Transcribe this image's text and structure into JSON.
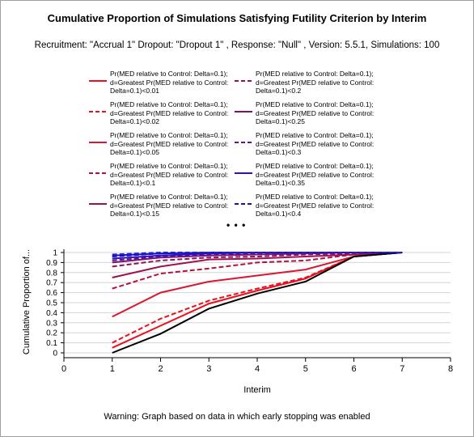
{
  "chart_data": {
    "type": "line",
    "title": "Cumulative Proportion of Simulations Satisfying Futility Criterion by Interim",
    "subtitle": "Recruitment: \"Accrual 1\" Dropout: \"Dropout 1\" , Response: \"Null\" , Version: 5.5.1, Simulations: 100",
    "xlabel": "Interim",
    "ylabel": "Cumulative Proportion of...",
    "xlim": [
      0,
      8
    ],
    "ylim": [
      0,
      1
    ],
    "x_ticks": [
      "0",
      "1",
      "2",
      "3",
      "4",
      "5",
      "6",
      "7",
      "8"
    ],
    "y_ticks": [
      "0",
      "0.1",
      "0.2",
      "0.3",
      "0.4",
      "0.5",
      "0.6",
      "0.7",
      "0.8",
      "0.9",
      "1"
    ],
    "grid": "horizontal",
    "legend_placement": "top",
    "legend_more": "• • •",
    "x": [
      1,
      2,
      3,
      4,
      5,
      6,
      7
    ],
    "series": [
      {
        "name": "Pr(MED relative to Control: Delta=0.1); d=Greatest Pr(MED relative to Control: Delta=0.1)<0.01",
        "color": "#e8101e",
        "dash": "solid",
        "values": [
          0.05,
          0.27,
          0.49,
          0.62,
          0.74,
          0.96,
          1.0
        ]
      },
      {
        "name": "Pr(MED relative to Control: Delta=0.1); d=Greatest Pr(MED relative to Control: Delta=0.1)<0.02",
        "color": "#e8101e",
        "dash": "dashed",
        "values": [
          0.1,
          0.34,
          0.52,
          0.64,
          0.75,
          0.96,
          1.0
        ]
      },
      {
        "name": "Pr(MED relative to Control: Delta=0.1); d=Greatest Pr(MED relative to Control: Delta=0.1)<0.05",
        "color": "#d81830",
        "dash": "solid",
        "values": [
          0.36,
          0.6,
          0.71,
          0.77,
          0.83,
          0.96,
          1.0
        ]
      },
      {
        "name": "Pr(MED relative to Control: Delta=0.1); d=Greatest Pr(MED relative to Control: Delta=0.1)<0.1",
        "color": "#b8103c",
        "dash": "dashed",
        "values": [
          0.64,
          0.79,
          0.84,
          0.9,
          0.92,
          0.98,
          1.0
        ]
      },
      {
        "name": "Pr(MED relative to Control: Delta=0.1); d=Greatest Pr(MED relative to Control: Delta=0.1)<0.15",
        "color": "#a01050",
        "dash": "solid",
        "values": [
          0.75,
          0.86,
          0.93,
          0.94,
          0.96,
          0.98,
          1.0
        ]
      },
      {
        "name": "Pr(MED relative to Control: Delta=0.1); d=Greatest Pr(MED relative to Control: Delta=0.1)<0.2",
        "color": "#8c1260",
        "dash": "dashed",
        "values": [
          0.86,
          0.92,
          0.95,
          0.96,
          0.98,
          0.99,
          1.0
        ]
      },
      {
        "name": "Pr(MED relative to Control: Delta=0.1); d=Greatest Pr(MED relative to Control: Delta=0.1)<0.25",
        "color": "#781470",
        "dash": "solid",
        "values": [
          0.9,
          0.95,
          0.97,
          0.98,
          0.99,
          1.0,
          1.0
        ]
      },
      {
        "name": "Pr(MED relative to Control: Delta=0.1); d=Greatest Pr(MED relative to Control: Delta=0.1)<0.3",
        "color": "#601480",
        "dash": "dashed",
        "values": [
          0.92,
          0.96,
          0.98,
          0.99,
          0.99,
          1.0,
          1.0
        ]
      },
      {
        "name": "Pr(MED relative to Control: Delta=0.1); d=Greatest Pr(MED relative to Control: Delta=0.1)<0.35",
        "color": "#2a10c8",
        "dash": "solid",
        "values": [
          0.94,
          0.97,
          0.99,
          1.0,
          1.0,
          1.0,
          1.0
        ]
      },
      {
        "name": "Pr(MED relative to Control: Delta=0.1); d=Greatest Pr(MED relative to Control: Delta=0.1)<0.4",
        "color": "#1a10a8",
        "dash": "dashed",
        "values": [
          0.96,
          0.99,
          1.0,
          1.0,
          1.0,
          1.0,
          1.0
        ]
      },
      {
        "color": "#000000",
        "dash": "solid",
        "values": [
          0.0,
          0.19,
          0.44,
          0.59,
          0.71,
          0.96,
          1.0
        ]
      },
      {
        "color": "#1a10c0",
        "dash": "solid",
        "values": [
          0.97,
          0.99,
          1.0,
          1.0,
          1.0,
          1.0,
          1.0
        ]
      },
      {
        "color": "#2020d8",
        "dash": "dashed",
        "values": [
          0.98,
          1.0,
          1.0,
          1.0,
          1.0,
          1.0,
          1.0
        ]
      }
    ],
    "legend_order": [
      0,
      5,
      1,
      6,
      2,
      7,
      3,
      8,
      4,
      9
    ],
    "warning": "Warning: Graph based on data in which early stopping was enabled"
  }
}
